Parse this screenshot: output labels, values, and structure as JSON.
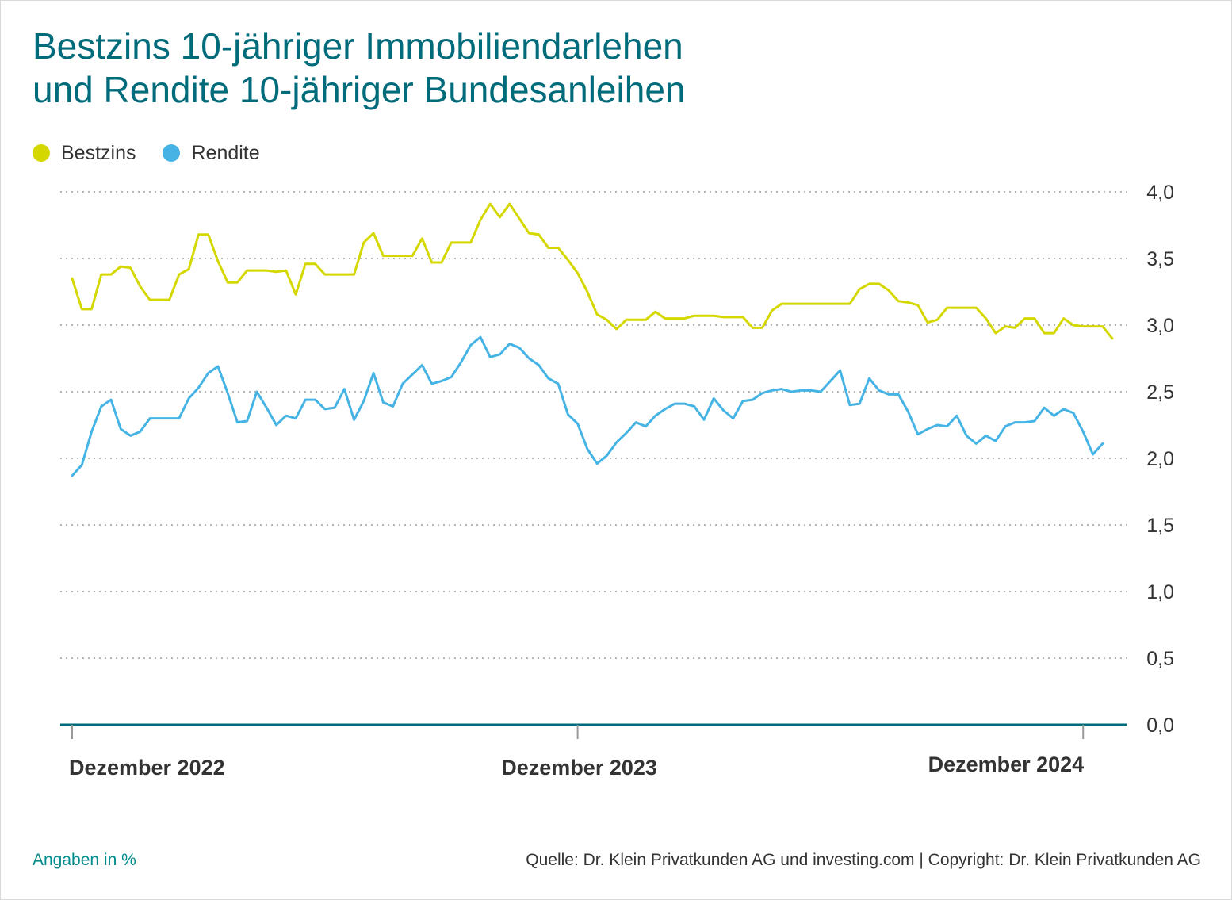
{
  "header": {
    "title_line1": "Bestzins 10-jähriger Immobiliendarlehen",
    "title_line2": "und Rendite 10-jähriger Bundesanleihen"
  },
  "legend": [
    {
      "label": "Bestzins",
      "color": "#d4d800"
    },
    {
      "label": "Rendite",
      "color": "#45b4e5"
    }
  ],
  "footer": {
    "unit_note": "Angaben in %",
    "source": "Quelle: Dr. Klein Privatkunden AG und investing.com | Copyright: Dr. Klein Privatkunden AG"
  },
  "chart_data": {
    "type": "line",
    "x_labels": [
      "Dezember 2022",
      "Dezember 2023",
      "Dezember 2024"
    ],
    "x_label_week_index": [
      0,
      52,
      104
    ],
    "y_ticks": [
      "0,0",
      "0,5",
      "1,0",
      "1,5",
      "2,0",
      "2,5",
      "3,0",
      "3,5",
      "4,0"
    ],
    "ylim": [
      0,
      4
    ],
    "grid": true,
    "legend_position": "top-left",
    "series": [
      {
        "name": "Bestzins",
        "color": "#d4d800",
        "values": [
          3.35,
          3.12,
          3.12,
          3.38,
          3.38,
          3.44,
          3.43,
          3.29,
          3.19,
          3.19,
          3.19,
          3.38,
          3.42,
          3.68,
          3.68,
          3.48,
          3.32,
          3.32,
          3.41,
          3.41,
          3.41,
          3.4,
          3.41,
          3.23,
          3.46,
          3.46,
          3.38,
          3.38,
          3.38,
          3.38,
          3.62,
          3.69,
          3.52,
          3.52,
          3.52,
          3.52,
          3.65,
          3.47,
          3.47,
          3.62,
          3.62,
          3.62,
          3.79,
          3.91,
          3.81,
          3.91,
          3.8,
          3.69,
          3.68,
          3.58,
          3.58,
          3.49,
          3.39,
          3.25,
          3.08,
          3.04,
          2.97,
          3.04,
          3.04,
          3.04,
          3.1,
          3.05,
          3.05,
          3.05,
          3.07,
          3.07,
          3.07,
          3.06,
          3.06,
          3.06,
          2.98,
          2.98,
          3.11,
          3.16,
          3.16,
          3.16,
          3.16,
          3.16,
          3.16,
          3.16,
          3.16,
          3.27,
          3.31,
          3.31,
          3.26,
          3.18,
          3.17,
          3.15,
          3.02,
          3.04,
          3.13,
          3.13,
          3.13,
          3.13,
          3.05,
          2.94,
          2.99,
          2.98,
          3.05,
          3.05,
          2.94,
          2.94,
          3.05,
          3.0,
          2.99,
          2.99,
          2.99,
          2.9
        ]
      },
      {
        "name": "Rendite",
        "color": "#45b4e5",
        "values": [
          1.87,
          1.95,
          2.2,
          2.39,
          2.44,
          2.22,
          2.17,
          2.2,
          2.3,
          2.3,
          2.3,
          2.3,
          2.45,
          2.53,
          2.64,
          2.69,
          2.49,
          2.27,
          2.28,
          2.5,
          2.38,
          2.25,
          2.32,
          2.3,
          2.44,
          2.44,
          2.37,
          2.38,
          2.52,
          2.29,
          2.43,
          2.64,
          2.42,
          2.39,
          2.56,
          2.63,
          2.7,
          2.56,
          2.58,
          2.61,
          2.72,
          2.85,
          2.91,
          2.76,
          2.78,
          2.86,
          2.83,
          2.75,
          2.7,
          2.6,
          2.56,
          2.33,
          2.26,
          2.07,
          1.96,
          2.02,
          2.12,
          2.19,
          2.27,
          2.24,
          2.32,
          2.37,
          2.41,
          2.41,
          2.39,
          2.29,
          2.45,
          2.36,
          2.3,
          2.43,
          2.44,
          2.49,
          2.51,
          2.52,
          2.5,
          2.51,
          2.51,
          2.5,
          2.58,
          2.66,
          2.4,
          2.41,
          2.6,
          2.51,
          2.48,
          2.48,
          2.35,
          2.18,
          2.22,
          2.25,
          2.24,
          2.32,
          2.17,
          2.11,
          2.17,
          2.13,
          2.24,
          2.27,
          2.27,
          2.28,
          2.38,
          2.32,
          2.37,
          2.34,
          2.2,
          2.03,
          2.11
        ]
      }
    ]
  }
}
